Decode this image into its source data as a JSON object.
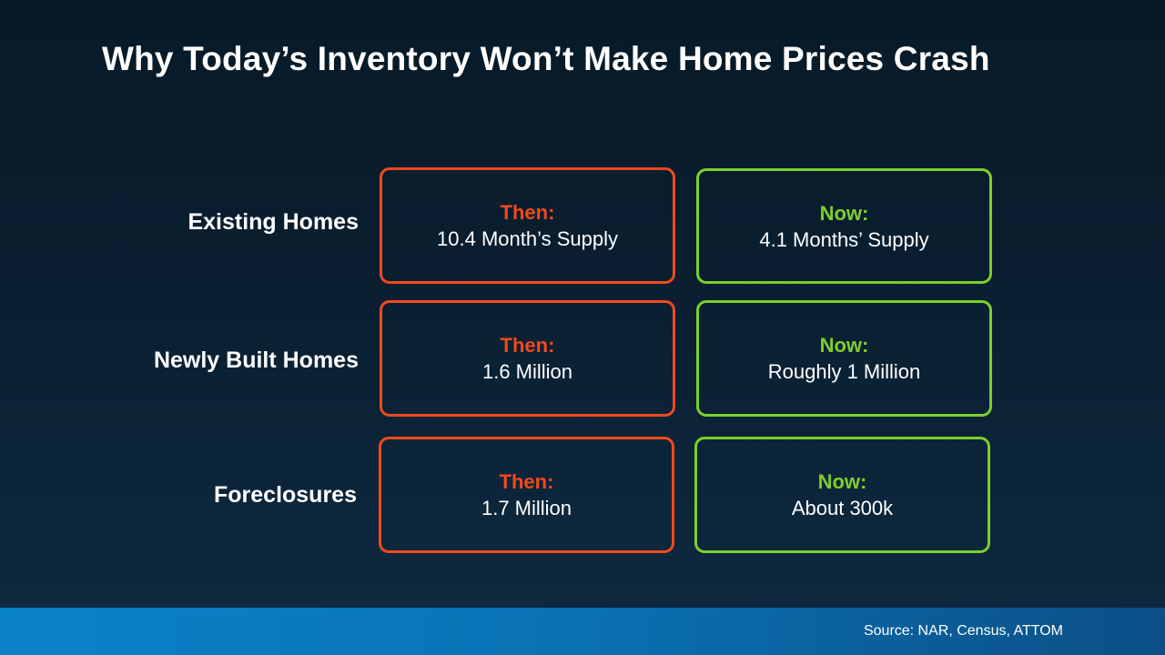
{
  "title": "Why Today’s Inventory Won’t Make Home Prices Crash",
  "rows": [
    {
      "label": "Existing Homes",
      "then": {
        "heading": "Then:",
        "value": "10.4 Month’s Supply"
      },
      "now": {
        "heading": "Now:",
        "value": "4.1 Months’ Supply"
      }
    },
    {
      "label": "Newly Built Homes",
      "then": {
        "heading": "Then:",
        "value": "1.6 Million"
      },
      "now": {
        "heading": "Now:",
        "value": "Roughly 1 Million"
      }
    },
    {
      "label": "Foreclosures",
      "then": {
        "heading": "Then:",
        "value": "1.7 Million"
      },
      "now": {
        "heading": "Now:",
        "value": "About 300k"
      }
    }
  ],
  "source": "Source: NAR, Census, ATTOM",
  "colors": {
    "then_accent": "#f04a1c",
    "now_accent": "#7ccf2c",
    "background": "#0a1e2f",
    "footer_band": "#0a82c8"
  }
}
